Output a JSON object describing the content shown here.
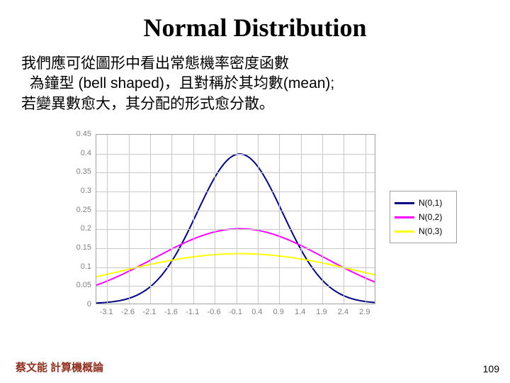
{
  "title": "Normal Distribution",
  "description": {
    "line1": "我們應可從圖形中看出常態機率密度函數",
    "line2": "  為鐘型 (bell shaped)，且對稱於其均數(mean);",
    "line3": "若變異數愈大，其分配的形式愈分散。"
  },
  "chart": {
    "type": "line",
    "background_color": "#ffffff",
    "grid_color": "#c8c8c8",
    "border_color": "#a0a0a0",
    "tick_fontsize": 11,
    "tick_color": "#808080",
    "ylim": [
      0,
      0.45
    ],
    "ytick_step": 0.05,
    "yticks": [
      0,
      0.05,
      0.1,
      0.15,
      0.2,
      0.25,
      0.3,
      0.35,
      0.4,
      0.45
    ],
    "xlim": [
      -3.35,
      3.15
    ],
    "xticks": [
      -3.1,
      -2.6,
      -2.1,
      -1.6,
      -1.1,
      -0.6,
      -0.1,
      0.4,
      0.9,
      1.4,
      1.9,
      2.4,
      2.9
    ],
    "line_width": 2,
    "series": [
      {
        "label": "N(0,1)",
        "color": "#000080",
        "mu": 0,
        "sigma": 1
      },
      {
        "label": "N(0,2)",
        "color": "#ff00ff",
        "mu": 0,
        "sigma": 2
      },
      {
        "label": "N(0,3)",
        "color": "#ffff00",
        "mu": 0,
        "sigma": 3
      }
    ]
  },
  "footer": {
    "author": "蔡文能 計算機概論",
    "page": "109"
  }
}
